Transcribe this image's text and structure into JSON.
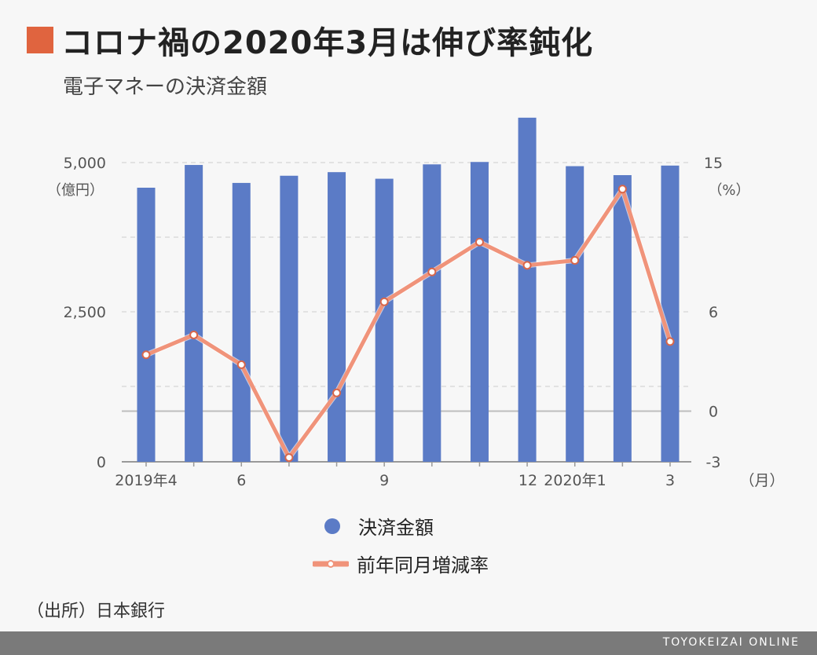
{
  "title": "コロナ禍の2020年3月は伸び率鈍化",
  "subtitle": "電子マネーの決済金額",
  "source": "（出所）日本銀行",
  "footer": "TOYOKEIZAI ONLINE",
  "colors": {
    "accent": "#e0643f",
    "bar": "#5b7bc6",
    "line": "#f0937a",
    "grid": "#cccccc",
    "axis": "#999999"
  },
  "chart_data": {
    "type": "bar+line",
    "categories": [
      "2019-04",
      "2019-05",
      "2019-06",
      "2019-07",
      "2019-08",
      "2019-09",
      "2019-10",
      "2019-11",
      "2019-12",
      "2020-01",
      "2020-02",
      "2020-03"
    ],
    "x_tick_labels": [
      {
        "index": 0,
        "label": "2019年4"
      },
      {
        "index": 2,
        "label": "6"
      },
      {
        "index": 5,
        "label": "9"
      },
      {
        "index": 8,
        "label": "12"
      },
      {
        "index": 9,
        "label": "2020年1"
      },
      {
        "index": 11,
        "label": "3"
      }
    ],
    "x_unit": "（月）",
    "series": [
      {
        "name": "決済金額",
        "kind": "bar",
        "axis": "left",
        "values": [
          4580,
          4960,
          4660,
          4780,
          4840,
          4730,
          4970,
          5010,
          5750,
          4940,
          4790,
          4950
        ]
      },
      {
        "name": "前年同月増減率",
        "kind": "line",
        "axis": "right",
        "values": [
          3.4,
          4.6,
          2.8,
          -2.8,
          1.1,
          6.6,
          8.4,
          10.2,
          8.8,
          9.1,
          13.4,
          4.2
        ]
      }
    ],
    "y_left": {
      "ticks": [
        0,
        2500,
        5000
      ],
      "tick_labels": [
        "0",
        "2,500",
        "5,000"
      ],
      "unit": "（億円）",
      "range": [
        0,
        6250
      ]
    },
    "y_right": {
      "ticks": [
        -3,
        0,
        6,
        15
      ],
      "tick_labels": [
        "-3",
        "0",
        "6",
        "15"
      ],
      "unit": "（%）"
    },
    "legend": [
      "決済金額",
      "前年同月増減率"
    ]
  }
}
